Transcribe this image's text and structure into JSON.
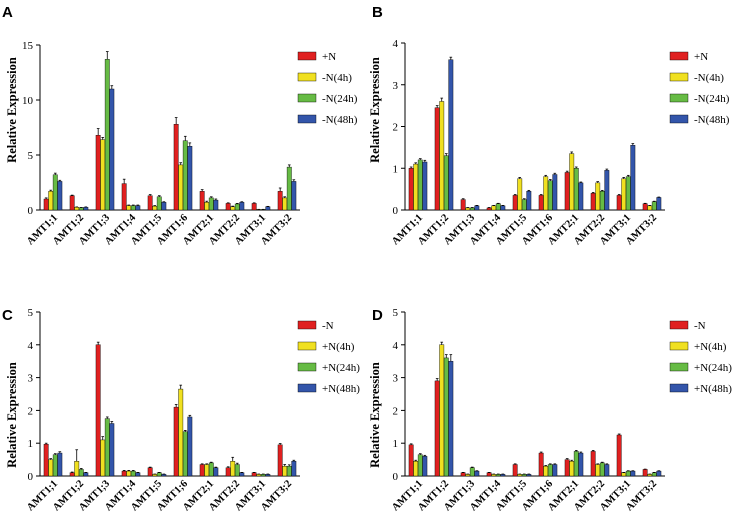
{
  "chart_data": [
    {
      "type": "bar",
      "panel": "A",
      "ylabel": "Relative Expression",
      "ylim": [
        0,
        15
      ],
      "yticks": [
        0,
        5,
        10,
        15
      ],
      "categories": [
        "AMT1;1",
        "AMT1;2",
        "AMT1;3",
        "AMT1;4",
        "AMT1;5",
        "AMT1;6",
        "AMT2;1",
        "AMT2;2",
        "AMT3;1",
        "AMT3;2"
      ],
      "series": [
        {
          "name": "+N",
          "color": "#e02020",
          "values": [
            1.0,
            1.3,
            6.8,
            2.4,
            1.3,
            7.8,
            1.7,
            0.6,
            0.6,
            1.7
          ],
          "errors": [
            0.1,
            0.05,
            0.6,
            0.4,
            0.1,
            0.6,
            0.15,
            0.05,
            0.05,
            0.3
          ]
        },
        {
          "name": "-N(4h)",
          "color": "#f0e020",
          "values": [
            1.7,
            0.25,
            6.4,
            0.4,
            0.35,
            4.1,
            0.7,
            0.3,
            0.05,
            1.1
          ],
          "errors": [
            0.1,
            0.03,
            0.2,
            0.05,
            0.05,
            0.2,
            0.1,
            0.05,
            0.01,
            0.1
          ]
        },
        {
          "name": "-N(24h)",
          "color": "#66bb44",
          "values": [
            3.2,
            0.2,
            13.7,
            0.4,
            1.2,
            6.3,
            1.1,
            0.55,
            0.05,
            3.9
          ],
          "errors": [
            0.15,
            0.03,
            0.7,
            0.05,
            0.1,
            0.4,
            0.1,
            0.05,
            0.01,
            0.2
          ]
        },
        {
          "name": "-N(48h)",
          "color": "#3355aa",
          "values": [
            2.6,
            0.25,
            11.0,
            0.4,
            0.7,
            5.8,
            0.9,
            0.7,
            0.3,
            2.6
          ],
          "errors": [
            0.1,
            0.03,
            0.3,
            0.05,
            0.05,
            0.3,
            0.1,
            0.05,
            0.03,
            0.15
          ]
        }
      ]
    },
    {
      "type": "bar",
      "panel": "B",
      "ylabel": "Relative Expression",
      "ylim": [
        0,
        4
      ],
      "yticks": [
        0,
        1,
        2,
        3,
        4
      ],
      "categories": [
        "AMT1;1",
        "AMT1;2",
        "AMT1;3",
        "AMT1;4",
        "AMT1;5",
        "AMT1;6",
        "AMT2;1",
        "AMT2;2",
        "AMT3;1",
        "AMT3;2"
      ],
      "series": [
        {
          "name": "+N",
          "color": "#e02020",
          "values": [
            1.0,
            2.45,
            0.25,
            0.05,
            0.35,
            0.35,
            0.9,
            0.4,
            0.35,
            0.15
          ],
          "errors": [
            0.03,
            0.05,
            0.02,
            0.01,
            0.02,
            0.02,
            0.03,
            0.02,
            0.02,
            0.01
          ]
        },
        {
          "name": "-N(4h)",
          "color": "#f0e020",
          "values": [
            1.1,
            2.6,
            0.05,
            0.1,
            0.75,
            0.8,
            1.35,
            0.65,
            0.75,
            0.1
          ],
          "errors": [
            0.03,
            0.08,
            0.01,
            0.01,
            0.03,
            0.03,
            0.04,
            0.03,
            0.03,
            0.01
          ]
        },
        {
          "name": "-N(24h)",
          "color": "#66bb44",
          "values": [
            1.2,
            1.3,
            0.05,
            0.15,
            0.25,
            0.7,
            1.0,
            0.45,
            0.8,
            0.2
          ],
          "errors": [
            0.03,
            0.05,
            0.01,
            0.01,
            0.02,
            0.03,
            0.03,
            0.02,
            0.03,
            0.01
          ]
        },
        {
          "name": "-N(48h)",
          "color": "#3355aa",
          "values": [
            1.15,
            3.6,
            0.1,
            0.1,
            0.45,
            0.85,
            0.65,
            0.95,
            1.55,
            0.3
          ],
          "errors": [
            0.04,
            0.06,
            0.01,
            0.01,
            0.02,
            0.03,
            0.02,
            0.03,
            0.04,
            0.01
          ]
        }
      ]
    },
    {
      "type": "bar",
      "panel": "C",
      "ylabel": "Relative Expression",
      "ylim": [
        0,
        5
      ],
      "yticks": [
        0,
        1,
        2,
        3,
        4,
        5
      ],
      "categories": [
        "AMT1;1",
        "AMT1;2",
        "AMT1;3",
        "AMT1;4",
        "AMT1;5",
        "AMT1;6",
        "AMT2;1",
        "AMT2;2",
        "AMT3;1",
        "AMT3;2"
      ],
      "series": [
        {
          "name": "-N",
          "color": "#e02020",
          "values": [
            0.97,
            0.1,
            4.0,
            0.15,
            0.25,
            2.1,
            0.35,
            0.25,
            0.1,
            0.95
          ],
          "errors": [
            0.03,
            0.02,
            0.08,
            0.02,
            0.02,
            0.08,
            0.02,
            0.03,
            0.01,
            0.04
          ]
        },
        {
          "name": "+N(4h)",
          "color": "#f0e020",
          "values": [
            0.5,
            0.45,
            1.1,
            0.15,
            0.05,
            2.65,
            0.35,
            0.45,
            0.05,
            0.3
          ],
          "errors": [
            0.03,
            0.35,
            0.1,
            0.02,
            0.01,
            0.12,
            0.02,
            0.12,
            0.01,
            0.05
          ]
        },
        {
          "name": "+N(24h)",
          "color": "#66bb44",
          "values": [
            0.65,
            0.2,
            1.75,
            0.15,
            0.1,
            1.35,
            0.4,
            0.35,
            0.05,
            0.3
          ],
          "errors": [
            0.03,
            0.03,
            0.05,
            0.02,
            0.01,
            0.04,
            0.02,
            0.04,
            0.01,
            0.04
          ]
        },
        {
          "name": "+N(48h)",
          "color": "#3355aa",
          "values": [
            0.7,
            0.1,
            1.6,
            0.1,
            0.05,
            1.8,
            0.25,
            0.1,
            0.05,
            0.45
          ],
          "errors": [
            0.04,
            0.01,
            0.06,
            0.01,
            0.01,
            0.05,
            0.02,
            0.01,
            0.01,
            0.03
          ]
        }
      ]
    },
    {
      "type": "bar",
      "panel": "D",
      "ylabel": "Relative Expression",
      "ylim": [
        0,
        5
      ],
      "yticks": [
        0,
        1,
        2,
        3,
        4,
        5
      ],
      "categories": [
        "AMT1;1",
        "AMT1;2",
        "AMT1;3",
        "AMT1;4",
        "AMT1;5",
        "AMT1;6",
        "AMT2;1",
        "AMT2;2",
        "AMT3;1",
        "AMT3;2"
      ],
      "series": [
        {
          "name": "-N",
          "color": "#e02020",
          "values": [
            0.95,
            2.9,
            0.1,
            0.1,
            0.35,
            0.7,
            0.5,
            0.75,
            1.25,
            0.2
          ],
          "errors": [
            0.03,
            0.07,
            0.01,
            0.01,
            0.02,
            0.03,
            0.03,
            0.03,
            0.03,
            0.01
          ]
        },
        {
          "name": "+N(4h)",
          "color": "#f0e020",
          "values": [
            0.45,
            4.0,
            0.05,
            0.05,
            0.05,
            0.3,
            0.45,
            0.35,
            0.1,
            0.05
          ],
          "errors": [
            0.03,
            0.08,
            0.01,
            0.01,
            0.01,
            0.02,
            0.03,
            0.02,
            0.01,
            0.01
          ]
        },
        {
          "name": "+N(24h)",
          "color": "#66bb44",
          "values": [
            0.65,
            3.6,
            0.25,
            0.05,
            0.05,
            0.35,
            0.75,
            0.4,
            0.15,
            0.1
          ],
          "errors": [
            0.03,
            0.1,
            0.02,
            0.01,
            0.01,
            0.02,
            0.03,
            0.02,
            0.01,
            0.01
          ]
        },
        {
          "name": "+N(48h)",
          "color": "#3355aa",
          "values": [
            0.6,
            3.5,
            0.15,
            0.05,
            0.05,
            0.35,
            0.7,
            0.35,
            0.15,
            0.15
          ],
          "errors": [
            0.03,
            0.2,
            0.01,
            0.01,
            0.01,
            0.02,
            0.03,
            0.02,
            0.01,
            0.01
          ]
        }
      ]
    }
  ]
}
